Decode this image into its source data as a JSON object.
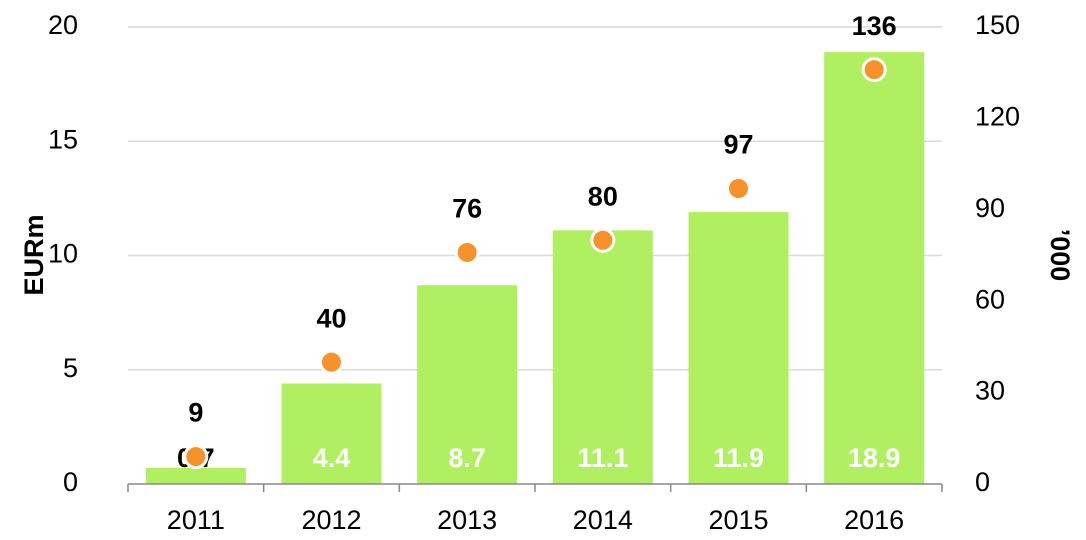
{
  "chart_data": {
    "type": "bar",
    "categories": [
      "2011",
      "2012",
      "2013",
      "2014",
      "2015",
      "2016"
    ],
    "y_label": "EURm",
    "y2_label": "’000",
    "ylim": [
      0,
      20
    ],
    "yticks": [
      0,
      5,
      10,
      15,
      20
    ],
    "y2lim": [
      0,
      150
    ],
    "y2ticks": [
      0,
      30,
      60,
      90,
      120,
      150
    ],
    "grid": true,
    "series": [
      {
        "type": "bar",
        "color": "#b0f060",
        "values": [
          0.7,
          4.4,
          8.7,
          11.1,
          11.9,
          18.9
        ]
      },
      {
        "type": "scatter",
        "axis": "y2",
        "color": "#f7922a",
        "values": [
          9,
          40,
          76,
          80,
          97,
          136
        ]
      }
    ]
  }
}
